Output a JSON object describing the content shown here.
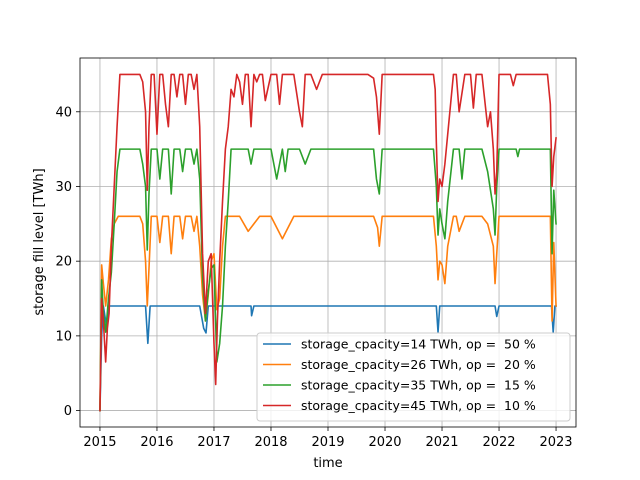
{
  "chart_data": {
    "type": "line",
    "title": "",
    "xlabel": "time",
    "ylabel": "storage fill level [TWh]",
    "xlim": [
      2014.65,
      2023.35
    ],
    "ylim": [
      -2.2,
      47.2
    ],
    "xticks": [
      2015,
      2016,
      2017,
      2018,
      2019,
      2020,
      2021,
      2022,
      2023
    ],
    "xtick_labels": [
      "2015",
      "2016",
      "2017",
      "2018",
      "2019",
      "2020",
      "2021",
      "2022",
      "2023"
    ],
    "yticks": [
      0,
      10,
      20,
      30,
      40
    ],
    "ytick_labels": [
      "0",
      "10",
      "20",
      "30",
      "40"
    ],
    "grid": true,
    "legend_position": "lower-right",
    "series": [
      {
        "name": "storage_cpacity=14 TWh, op =  50 %",
        "color": "#1f77b4",
        "x": [
          2015.0,
          2015.03,
          2015.06,
          2015.09,
          2015.12,
          2015.16,
          2015.2,
          2015.25,
          2015.35,
          2015.5,
          2015.7,
          2015.8,
          2015.84,
          2015.88,
          2015.92,
          2016.0,
          2016.2,
          2016.6,
          2016.75,
          2016.82,
          2016.86,
          2016.9,
          2016.96,
          2017.05,
          2017.15,
          2017.3,
          2017.65,
          2017.66,
          2017.7,
          2018.0,
          2019.0,
          2020.0,
          2020.5,
          2020.9,
          2020.93,
          2020.96,
          2021.0,
          2021.5,
          2021.93,
          2021.96,
          2022.0,
          2022.5,
          2022.92,
          2022.95,
          2022.98,
          2023.0
        ],
        "values": [
          0.0,
          10.0,
          14.0,
          12.5,
          11.0,
          14.0,
          14.0,
          14.0,
          14.0,
          14.0,
          14.0,
          14.0,
          9.0,
          14.0,
          14.0,
          14.0,
          14.0,
          14.0,
          14.0,
          11.0,
          10.4,
          14.0,
          14.0,
          14.0,
          14.0,
          14.0,
          14.0,
          12.7,
          14.0,
          14.0,
          14.0,
          14.0,
          14.0,
          14.0,
          10.5,
          14.0,
          14.0,
          14.0,
          14.0,
          12.6,
          14.0,
          14.0,
          14.0,
          10.5,
          14.0,
          14.0
        ]
      },
      {
        "name": "storage_cpacity=26 TWh, op =  20 %",
        "color": "#ff7f0e",
        "x": [
          2015.0,
          2015.03,
          2015.06,
          2015.1,
          2015.15,
          2015.2,
          2015.25,
          2015.32,
          2015.4,
          2015.5,
          2015.6,
          2015.7,
          2015.75,
          2015.8,
          2015.83,
          2015.86,
          2015.9,
          2016.0,
          2016.05,
          2016.1,
          2016.2,
          2016.25,
          2016.3,
          2016.4,
          2016.45,
          2016.5,
          2016.6,
          2016.65,
          2016.7,
          2016.75,
          2016.8,
          2016.85,
          2016.9,
          2016.95,
          2017.0,
          2017.05,
          2017.1,
          2017.15,
          2017.2,
          2017.3,
          2017.45,
          2017.6,
          2017.8,
          2017.9,
          2018.0,
          2018.2,
          2018.4,
          2018.6,
          2018.8,
          2019.0,
          2019.2,
          2019.4,
          2019.6,
          2019.8,
          2019.87,
          2019.9,
          2019.95,
          2020.0,
          2020.5,
          2020.85,
          2020.9,
          2020.93,
          2020.96,
          2021.0,
          2021.05,
          2021.1,
          2021.2,
          2021.25,
          2021.3,
          2021.4,
          2021.5,
          2021.6,
          2021.7,
          2021.8,
          2021.9,
          2021.93,
          2021.96,
          2022.0,
          2022.3,
          2022.6,
          2022.85,
          2022.9,
          2022.93,
          2022.96,
          2023.0
        ],
        "values": [
          0.0,
          19.5,
          17.0,
          14.0,
          17.5,
          23.0,
          25.0,
          26.0,
          26.0,
          26.0,
          26.0,
          26.0,
          25.0,
          20.0,
          14.0,
          19.0,
          26.0,
          26.0,
          22.5,
          26.0,
          26.0,
          21.0,
          26.0,
          26.0,
          23.0,
          26.0,
          26.0,
          24.0,
          26.0,
          22.0,
          15.5,
          12.0,
          15.5,
          20.0,
          21.0,
          13.5,
          15.0,
          22.0,
          26.0,
          26.0,
          26.0,
          24.0,
          26.0,
          26.0,
          26.0,
          23.0,
          26.0,
          26.0,
          26.0,
          26.0,
          26.0,
          26.0,
          26.0,
          26.0,
          24.5,
          22.0,
          26.0,
          26.0,
          26.0,
          26.0,
          22.0,
          17.5,
          20.0,
          19.5,
          17.0,
          22.0,
          26.0,
          26.0,
          24.0,
          26.0,
          26.0,
          26.0,
          26.0,
          25.0,
          22.0,
          17.0,
          21.0,
          26.0,
          26.0,
          26.0,
          26.0,
          26.0,
          12.0,
          22.5,
          14.0
        ]
      },
      {
        "name": "storage_cpacity=35 TWh, op =  15 %",
        "color": "#2ca02c",
        "x": [
          2015.0,
          2015.03,
          2015.06,
          2015.1,
          2015.15,
          2015.2,
          2015.25,
          2015.3,
          2015.35,
          2015.5,
          2015.7,
          2015.75,
          2015.8,
          2015.83,
          2015.86,
          2015.9,
          2016.0,
          2016.05,
          2016.1,
          2016.2,
          2016.25,
          2016.3,
          2016.4,
          2016.45,
          2016.5,
          2016.6,
          2016.65,
          2016.7,
          2016.75,
          2016.8,
          2016.85,
          2016.9,
          2016.95,
          2017.0,
          2017.05,
          2017.1,
          2017.15,
          2017.2,
          2017.25,
          2017.3,
          2017.4,
          2017.5,
          2017.6,
          2017.65,
          2017.7,
          2017.8,
          2017.9,
          2018.0,
          2018.1,
          2018.2,
          2018.25,
          2018.3,
          2018.5,
          2018.6,
          2018.7,
          2018.8,
          2019.0,
          2019.2,
          2019.4,
          2019.6,
          2019.8,
          2019.85,
          2019.9,
          2019.95,
          2020.0,
          2020.5,
          2020.85,
          2020.9,
          2020.93,
          2020.96,
          2021.0,
          2021.05,
          2021.1,
          2021.2,
          2021.3,
          2021.35,
          2021.4,
          2021.5,
          2021.6,
          2021.7,
          2021.8,
          2021.9,
          2021.93,
          2021.96,
          2022.0,
          2022.3,
          2022.33,
          2022.36,
          2022.6,
          2022.85,
          2022.9,
          2022.93,
          2022.96,
          2023.0
        ],
        "values": [
          0.0,
          17.5,
          13.0,
          10.5,
          15.0,
          18.5,
          25.0,
          32.0,
          35.0,
          35.0,
          35.0,
          33.0,
          30.0,
          21.5,
          29.0,
          35.0,
          35.0,
          31.0,
          35.0,
          35.0,
          29.0,
          35.0,
          35.0,
          32.0,
          35.0,
          35.0,
          33.0,
          35.0,
          31.0,
          18.0,
          12.0,
          16.0,
          19.0,
          19.5,
          6.5,
          9.0,
          14.0,
          22.0,
          28.0,
          35.0,
          35.0,
          35.0,
          35.0,
          33.0,
          35.0,
          35.0,
          35.0,
          35.0,
          31.0,
          35.0,
          32.0,
          35.0,
          35.0,
          33.0,
          35.0,
          35.0,
          35.0,
          35.0,
          35.0,
          35.0,
          35.0,
          31.0,
          29.0,
          35.0,
          35.0,
          35.0,
          35.0,
          30.0,
          23.5,
          27.0,
          25.0,
          23.0,
          28.0,
          35.0,
          35.0,
          31.0,
          35.0,
          35.0,
          35.0,
          35.0,
          32.0,
          27.0,
          23.5,
          30.0,
          35.0,
          35.0,
          34.0,
          35.0,
          35.0,
          35.0,
          35.0,
          21.0,
          29.5,
          25.0
        ]
      },
      {
        "name": "storage_cpacity=45 TWh, op =  10 %",
        "color": "#d62728",
        "x": [
          2015.0,
          2015.03,
          2015.06,
          2015.1,
          2015.13,
          2015.16,
          2015.2,
          2015.25,
          2015.3,
          2015.35,
          2015.4,
          2015.45,
          2015.5,
          2015.6,
          2015.7,
          2015.75,
          2015.8,
          2015.83,
          2015.86,
          2015.9,
          2015.95,
          2016.0,
          2016.05,
          2016.1,
          2016.15,
          2016.2,
          2016.25,
          2016.3,
          2016.35,
          2016.4,
          2016.45,
          2016.5,
          2016.55,
          2016.6,
          2016.65,
          2016.7,
          2016.75,
          2016.8,
          2016.85,
          2016.9,
          2016.95,
          2017.0,
          2017.03,
          2017.06,
          2017.1,
          2017.15,
          2017.2,
          2017.25,
          2017.3,
          2017.35,
          2017.4,
          2017.45,
          2017.5,
          2017.55,
          2017.6,
          2017.65,
          2017.7,
          2017.75,
          2017.8,
          2017.85,
          2017.9,
          2018.0,
          2018.1,
          2018.15,
          2018.2,
          2018.3,
          2018.4,
          2018.5,
          2018.55,
          2018.6,
          2018.7,
          2018.8,
          2018.9,
          2019.0,
          2019.3,
          2019.5,
          2019.7,
          2019.8,
          2019.85,
          2019.9,
          2019.95,
          2020.0,
          2020.5,
          2020.85,
          2020.88,
          2020.9,
          2020.93,
          2020.96,
          2021.0,
          2021.05,
          2021.1,
          2021.2,
          2021.25,
          2021.3,
          2021.4,
          2021.5,
          2021.55,
          2021.6,
          2021.7,
          2021.8,
          2021.85,
          2021.9,
          2021.93,
          2021.96,
          2022.0,
          2022.2,
          2022.25,
          2022.3,
          2022.6,
          2022.8,
          2022.85,
          2022.9,
          2022.93,
          2022.96,
          2023.0
        ],
        "values": [
          0.0,
          15.0,
          12.0,
          6.5,
          11.0,
          13.0,
          22.0,
          30.0,
          38.0,
          45.0,
          45.0,
          45.0,
          45.0,
          45.0,
          45.0,
          44.0,
          40.0,
          29.5,
          38.0,
          45.0,
          45.0,
          37.0,
          45.0,
          45.0,
          41.0,
          38.0,
          45.0,
          45.0,
          42.0,
          45.0,
          45.0,
          41.0,
          45.0,
          45.0,
          43.0,
          45.0,
          38.0,
          21.0,
          13.0,
          20.0,
          21.0,
          9.0,
          3.5,
          12.0,
          20.0,
          28.0,
          35.0,
          38.0,
          43.0,
          42.0,
          45.0,
          44.0,
          41.0,
          45.0,
          45.0,
          38.0,
          45.0,
          44.0,
          45.0,
          45.0,
          41.5,
          45.0,
          45.0,
          41.0,
          45.0,
          45.0,
          45.0,
          40.0,
          38.0,
          45.0,
          45.0,
          43.0,
          45.0,
          45.0,
          45.0,
          45.0,
          45.0,
          44.5,
          42.0,
          37.0,
          45.0,
          45.0,
          45.0,
          45.0,
          43.0,
          36.0,
          28.0,
          31.0,
          30.0,
          33.0,
          37.0,
          45.0,
          45.0,
          40.0,
          45.0,
          45.0,
          40.5,
          45.0,
          45.0,
          38.0,
          40.0,
          35.0,
          29.0,
          32.0,
          45.0,
          45.0,
          43.5,
          45.0,
          45.0,
          45.0,
          45.0,
          41.0,
          30.0,
          34.0,
          36.5
        ]
      }
    ]
  }
}
